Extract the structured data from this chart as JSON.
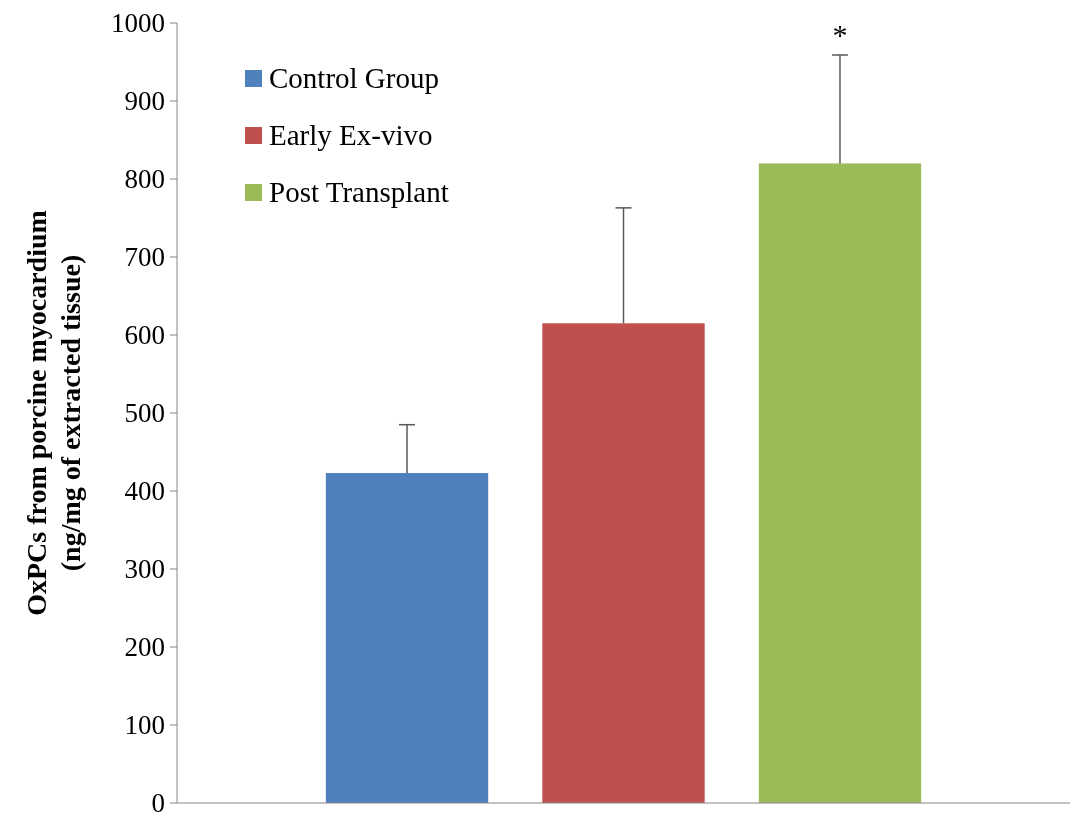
{
  "chart_data": {
    "type": "bar",
    "ylabel": "OxPCs from porcine myocardium\n(ng/mg of extracted tissue)",
    "categories": [
      null
    ],
    "series": [
      {
        "name": "Control Group",
        "color": "#4f81bd",
        "values": [
          423
        ],
        "errors": [
          [
            423,
            485
          ]
        ]
      },
      {
        "name": "Early Ex-vivo",
        "color": "#c0504d",
        "values": [
          615
        ],
        "errors": [
          [
            615,
            763
          ]
        ]
      },
      {
        "name": "Post Transplant",
        "color": "#9bbb59",
        "values": [
          820
        ],
        "errors": [
          [
            820,
            959
          ]
        ]
      }
    ],
    "ylim": [
      0,
      1000
    ],
    "yticks": [
      0,
      100,
      200,
      300,
      400,
      500,
      600,
      700,
      800,
      900,
      1000
    ],
    "grid": false,
    "legend": "top left",
    "annotations": [
      "*"
    ]
  }
}
